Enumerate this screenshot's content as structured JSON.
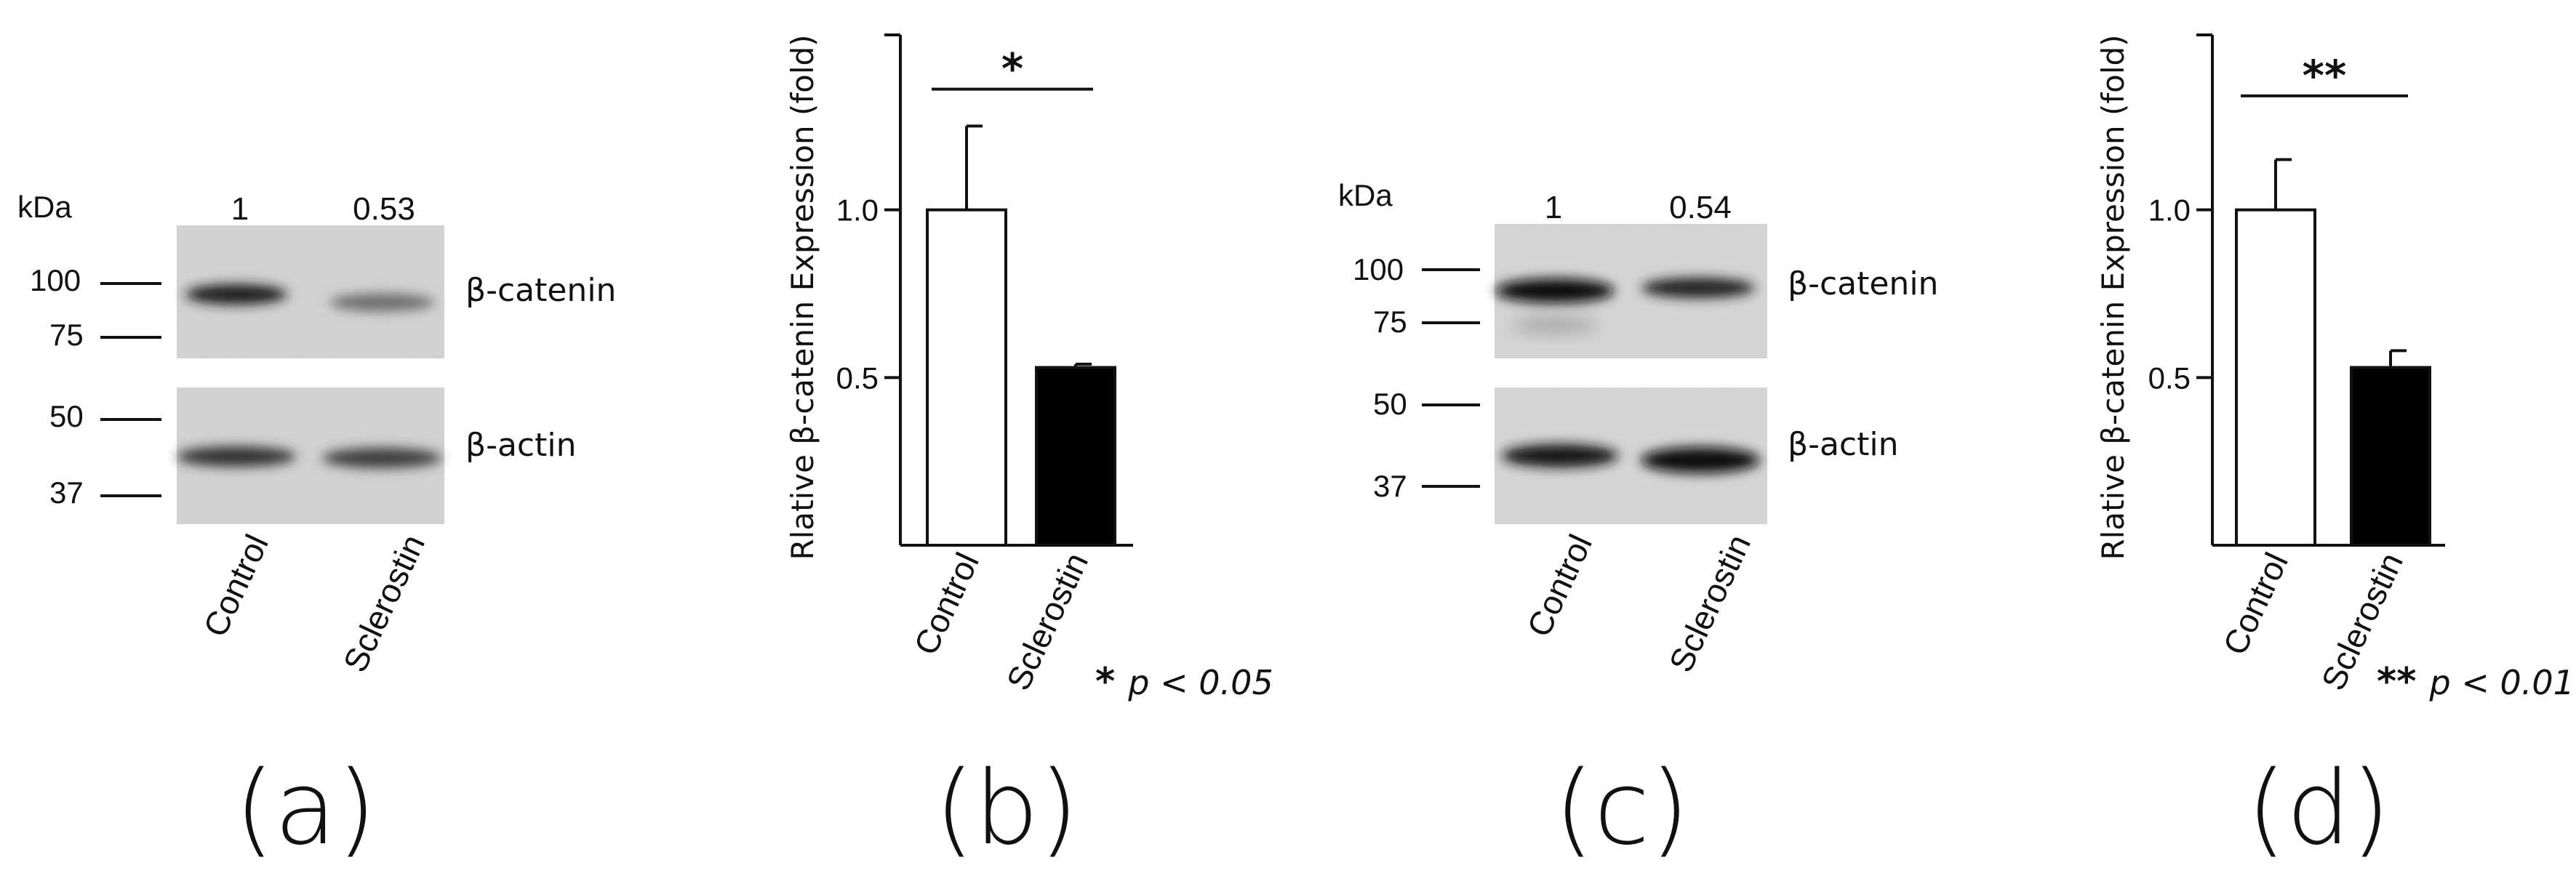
{
  "blots": [
    {
      "id": "a",
      "unit_label": "kDa",
      "lane_values": [
        "1",
        "0.53"
      ],
      "markers": [
        "100",
        "75",
        "50",
        "37"
      ],
      "band_labels": [
        "β-catenin",
        "β-actin"
      ],
      "lanes": [
        "Control",
        "Sclerostin"
      ],
      "panel_label": "(a)"
    },
    {
      "id": "c",
      "unit_label": "kDa",
      "lane_values": [
        "1",
        "0.54"
      ],
      "markers": [
        "100",
        "75",
        "50",
        "37"
      ],
      "band_labels": [
        "β-catenin",
        "β-actin"
      ],
      "lanes": [
        "Control",
        "Sclerostin"
      ],
      "panel_label": "(c)"
    }
  ],
  "chart_data": [
    {
      "type": "bar",
      "panel_label": "(b)",
      "categories": [
        "Control",
        "Sclerostin"
      ],
      "values": [
        1.0,
        0.53
      ],
      "errors": [
        0.25,
        0.01
      ],
      "ylabel": "Rlative β-catenin Expression (fold)",
      "yticks": [
        "0.5",
        "1.0"
      ],
      "ylim": [
        0,
        1.5
      ],
      "bar_colors": [
        "#ffffff",
        "#000000"
      ],
      "significance": "*",
      "note_mark": "*",
      "note_text": "p < 0.05"
    },
    {
      "type": "bar",
      "panel_label": "(d)",
      "categories": [
        "Control",
        "Sclerostin"
      ],
      "values": [
        1.0,
        0.53
      ],
      "errors": [
        0.15,
        0.05
      ],
      "ylabel": "Rlative β-catenin Expression (fold)",
      "yticks": [
        "0.5",
        "1.0"
      ],
      "ylim": [
        0,
        1.5
      ],
      "bar_colors": [
        "#ffffff",
        "#000000"
      ],
      "significance": "**",
      "note_mark": "**",
      "note_text": "p < 0.01"
    }
  ]
}
